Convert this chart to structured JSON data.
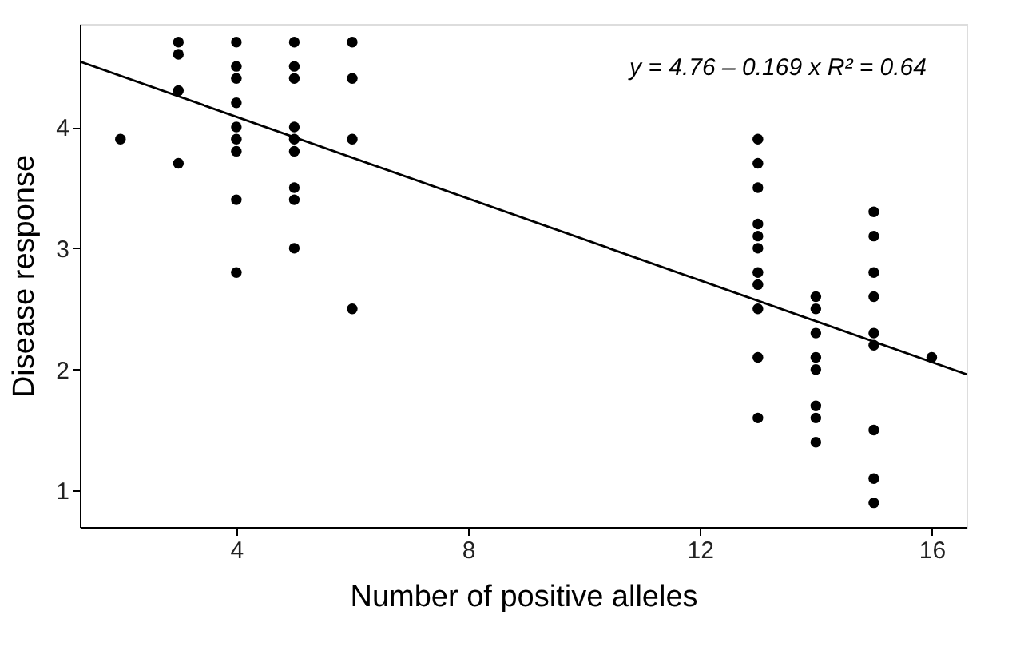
{
  "chart_data": {
    "type": "scatter",
    "xlabel": "Number of positive alleles",
    "ylabel": "Disease response",
    "xlim": [
      1.3,
      16.6
    ],
    "ylim": [
      0.7,
      4.85
    ],
    "xticks": [
      4,
      8,
      12,
      16
    ],
    "yticks": [
      1,
      2,
      3,
      4
    ],
    "grid": false,
    "annotations": [
      "y = 4.76 – 0.169 x   R² = 0.64"
    ],
    "series": [
      {
        "type": "scatter",
        "marker": "circle",
        "color": "#000000",
        "x": [
          2,
          3,
          3,
          3,
          3,
          4,
          4,
          4,
          4,
          4,
          4,
          4,
          4,
          4,
          5,
          5,
          5,
          5,
          5,
          5,
          5,
          5,
          5,
          6,
          6,
          6,
          6,
          13,
          13,
          13,
          13,
          13,
          13,
          13,
          13,
          13,
          13,
          13,
          14,
          14,
          14,
          14,
          14,
          14,
          14,
          14,
          15,
          15,
          15,
          15,
          15,
          15,
          15,
          15,
          15,
          16
        ],
        "values": [
          3.9,
          4.7,
          4.6,
          4.3,
          3.7,
          4.7,
          4.5,
          4.4,
          4.2,
          4.0,
          3.9,
          3.8,
          3.4,
          2.8,
          4.7,
          4.5,
          4.4,
          4.0,
          3.9,
          3.8,
          3.5,
          3.4,
          3.0,
          4.7,
          4.4,
          3.9,
          2.5,
          3.9,
          3.7,
          3.5,
          3.2,
          3.1,
          3.0,
          2.8,
          2.7,
          2.5,
          2.1,
          1.6,
          2.6,
          2.5,
          2.3,
          2.1,
          2.0,
          1.7,
          1.6,
          1.4,
          3.3,
          3.1,
          2.8,
          2.6,
          2.3,
          2.2,
          1.5,
          1.1,
          0.9,
          2.1
        ]
      },
      {
        "type": "line",
        "color": "#000000",
        "line_style": "solid",
        "x": [
          1.3,
          16.6
        ],
        "values": [
          4.54,
          1.96
        ]
      }
    ]
  }
}
